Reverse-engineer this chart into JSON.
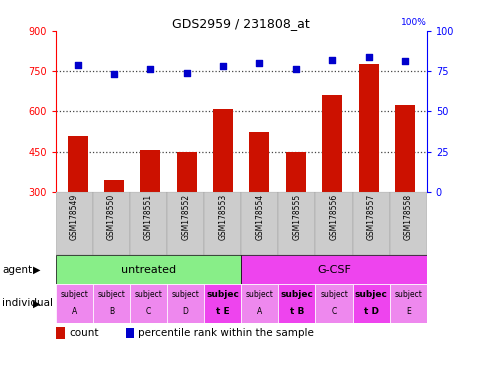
{
  "title": "GDS2959 / 231808_at",
  "samples": [
    "GSM178549",
    "GSM178550",
    "GSM178551",
    "GSM178552",
    "GSM178553",
    "GSM178554",
    "GSM178555",
    "GSM178556",
    "GSM178557",
    "GSM178558"
  ],
  "counts": [
    510,
    345,
    455,
    448,
    610,
    525,
    450,
    660,
    775,
    625
  ],
  "percentile_ranks": [
    79,
    73,
    76,
    74,
    78,
    80,
    76,
    82,
    84,
    81
  ],
  "ymin": 300,
  "ymax": 900,
  "yticks": [
    300,
    450,
    600,
    750,
    900
  ],
  "y2min": 0,
  "y2max": 100,
  "y2ticks": [
    0,
    25,
    50,
    75,
    100
  ],
  "bar_color": "#cc1100",
  "dot_color": "#0000cc",
  "agent_untreated_color": "#88ee88",
  "agent_gcsf_color": "#ee44ee",
  "individual_labels": [
    {
      "line1": "subject",
      "line2": "A",
      "bold": false
    },
    {
      "line1": "subject",
      "line2": "B",
      "bold": false
    },
    {
      "line1": "subject",
      "line2": "C",
      "bold": false
    },
    {
      "line1": "subject",
      "line2": "D",
      "bold": false
    },
    {
      "line1": "subjec",
      "line2": "t E",
      "bold": true
    },
    {
      "line1": "subject",
      "line2": "A",
      "bold": false
    },
    {
      "line1": "subjec",
      "line2": "t B",
      "bold": true
    },
    {
      "line1": "subject",
      "line2": "C",
      "bold": false
    },
    {
      "line1": "subjec",
      "line2": "t D",
      "bold": true
    },
    {
      "line1": "subject",
      "line2": "E",
      "bold": false
    }
  ],
  "individual_colors": [
    "#ee88ee",
    "#ee88ee",
    "#ee88ee",
    "#ee88ee",
    "#ee44ee",
    "#ee88ee",
    "#ee44ee",
    "#ee88ee",
    "#ee44ee",
    "#ee88ee"
  ],
  "legend_count_label": "count",
  "legend_pct_label": "percentile rank within the sample",
  "hlines": [
    450,
    600,
    750
  ],
  "grid_color": "#333333"
}
